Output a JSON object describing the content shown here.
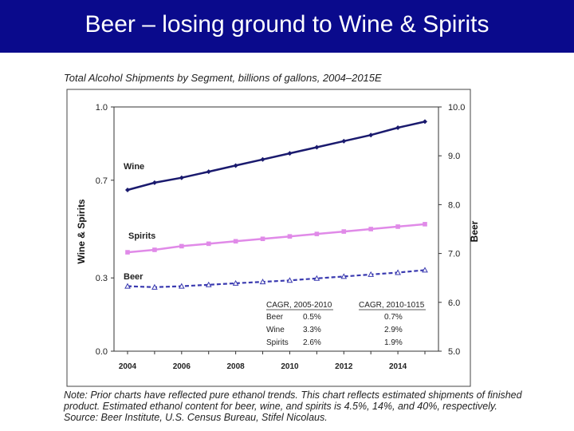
{
  "header": {
    "title": "Beer – losing ground to Wine & Spirits",
    "background": "#0a0a8c"
  },
  "chart_data": {
    "type": "line",
    "title": "Total Alcohol Shipments by Segment, billions of gallons, 2004–2015E",
    "ylabel_left": "Wine & Spirits",
    "ylabel_right": "Beer",
    "x": [
      2004,
      2005,
      2006,
      2007,
      2008,
      2009,
      2010,
      2011,
      2012,
      2013,
      2014,
      2015
    ],
    "x_tick_labels": [
      "2004",
      "2006",
      "2008",
      "2010",
      "2012",
      "2014"
    ],
    "ylim_left": [
      0.0,
      1.0
    ],
    "ylim_right": [
      5.0,
      10.0
    ],
    "y_left_tick_labels": [
      "1.0",
      "0.7",
      "0.3",
      "0.0"
    ],
    "y_right_tick_labels": [
      "10.0",
      "9.0",
      "8.0",
      "7.0",
      "6.0",
      "5.0"
    ],
    "series": [
      {
        "name": "Wine",
        "axis": "left",
        "color": "#1a1a6e",
        "values": [
          0.66,
          0.69,
          0.71,
          0.735,
          0.76,
          0.785,
          0.81,
          0.835,
          0.86,
          0.885,
          0.915,
          0.94
        ]
      },
      {
        "name": "Spirits",
        "axis": "left",
        "color": "#e08ae8",
        "values": [
          0.405,
          0.415,
          0.43,
          0.44,
          0.45,
          0.46,
          0.47,
          0.48,
          0.49,
          0.5,
          0.51,
          0.52
        ]
      },
      {
        "name": "Beer",
        "axis": "right",
        "color": "#3a3ab0",
        "values": [
          6.33,
          6.31,
          6.33,
          6.36,
          6.39,
          6.42,
          6.45,
          6.49,
          6.53,
          6.57,
          6.61,
          6.66
        ]
      }
    ],
    "cagr_table": {
      "header_1": "CAGR, 2005-2010",
      "header_2": "CAGR, 2010-1015",
      "rows": [
        {
          "label": "Beer",
          "v1": "0.5%",
          "v2": "0.7%"
        },
        {
          "label": "Wine",
          "v1": "3.3%",
          "v2": "2.9%"
        },
        {
          "label": "Spirits",
          "v1": "2.6%",
          "v2": "1.9%"
        }
      ]
    }
  },
  "note": {
    "line1": "Note: Prior charts have reflected pure ethanol trends. This chart reflects estimated shipments of finished",
    "line2": "product. Estimated ethanol content for beer, wine, and spirits is 4.5%, 14%, and 40%, respectively.",
    "line3": "Source: Beer Institute, U.S. Census Bureau, Stifel Nicolaus."
  }
}
